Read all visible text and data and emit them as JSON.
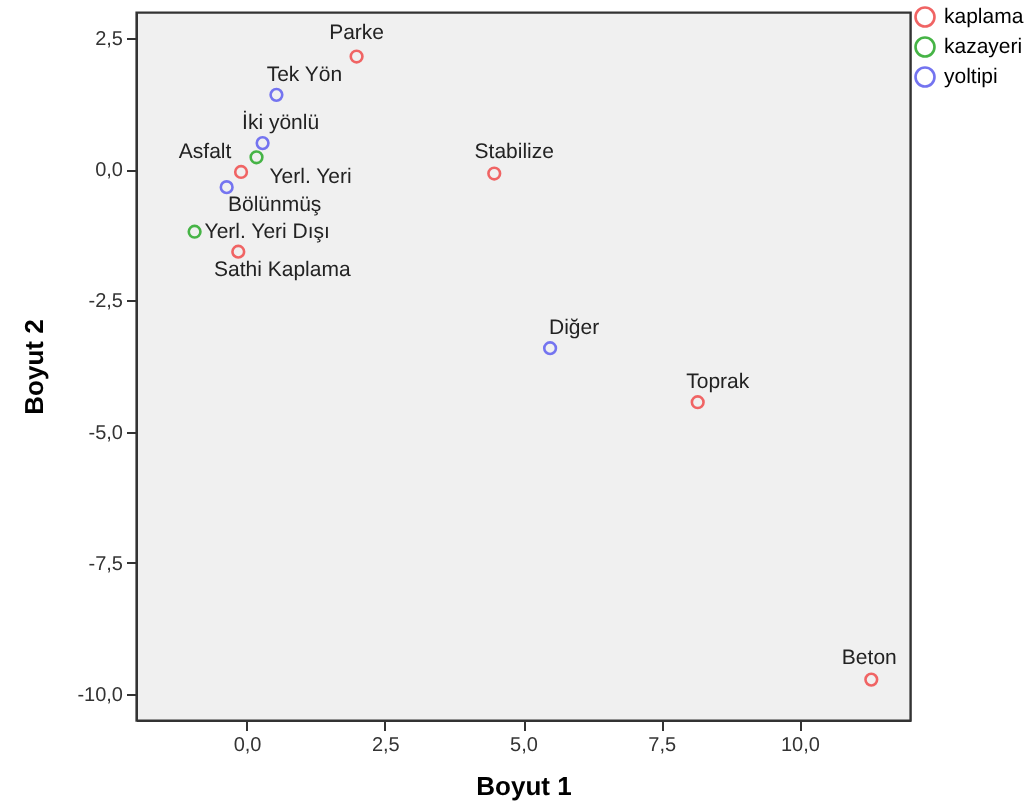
{
  "chart_data": {
    "type": "scatter",
    "xlabel": "Boyut 1",
    "ylabel": "Boyut 2",
    "xlim": [
      -2,
      12
    ],
    "ylim": [
      -10.5,
      3.0
    ],
    "xticks": [
      {
        "value": 0,
        "label": "0,0"
      },
      {
        "value": 2.5,
        "label": "2,5"
      },
      {
        "value": 5,
        "label": "5,0"
      },
      {
        "value": 7.5,
        "label": "7,5"
      },
      {
        "value": 10,
        "label": "10,0"
      }
    ],
    "yticks": [
      {
        "value": -10,
        "label": "-10,0"
      },
      {
        "value": -7.5,
        "label": "-7,5"
      },
      {
        "value": -5,
        "label": "-5,0"
      },
      {
        "value": -2.5,
        "label": "-2,5"
      },
      {
        "value": 0,
        "label": "0,0"
      },
      {
        "value": 2.5,
        "label": "2,5"
      }
    ],
    "grid": false,
    "legend": "top right",
    "marker": "circle",
    "series": [
      {
        "name": "kaplama",
        "color": "#f06464",
        "x": [
          1.99,
          -0.1,
          4.48,
          -0.15,
          8.16,
          11.3
        ],
        "values": [
          2.15,
          -0.05,
          -0.08,
          -1.57,
          -4.44,
          -9.73
        ]
      },
      {
        "name": "kazayeri",
        "color": "#46b446",
        "x": [
          0.18,
          -0.94
        ],
        "values": [
          0.23,
          -1.19
        ]
      },
      {
        "name": "yoltipi",
        "color": "#7474f0",
        "x": [
          0.54,
          0.29,
          -0.36,
          5.49
        ],
        "values": [
          1.42,
          0.5,
          -0.34,
          -3.41
        ]
      }
    ],
    "annotations": [
      {
        "text": "Parke",
        "x": 1.99,
        "y": 2.15
      },
      {
        "text": "Tek Yön",
        "x": 0.54,
        "y": 1.42
      },
      {
        "text": "İki yönlü",
        "x": 0.29,
        "y": 0.5
      },
      {
        "text": "Asfalt",
        "x": -0.1,
        "y": -0.05
      },
      {
        "text": "Yerl. Yeri",
        "x": 0.18,
        "y": 0.23
      },
      {
        "text": "Bölünmüş",
        "x": -0.36,
        "y": -0.34
      },
      {
        "text": "Yerl. Yeri Dışı",
        "x": -0.94,
        "y": -1.19
      },
      {
        "text": "Sathi Kaplama",
        "x": -0.15,
        "y": -1.57
      },
      {
        "text": "Stabilize",
        "x": 4.48,
        "y": -0.08
      },
      {
        "text": "Diğer",
        "x": 5.49,
        "y": -3.41
      },
      {
        "text": "Toprak",
        "x": 8.16,
        "y": -4.44
      },
      {
        "text": "Beton",
        "x": 11.3,
        "y": -9.73
      }
    ]
  }
}
